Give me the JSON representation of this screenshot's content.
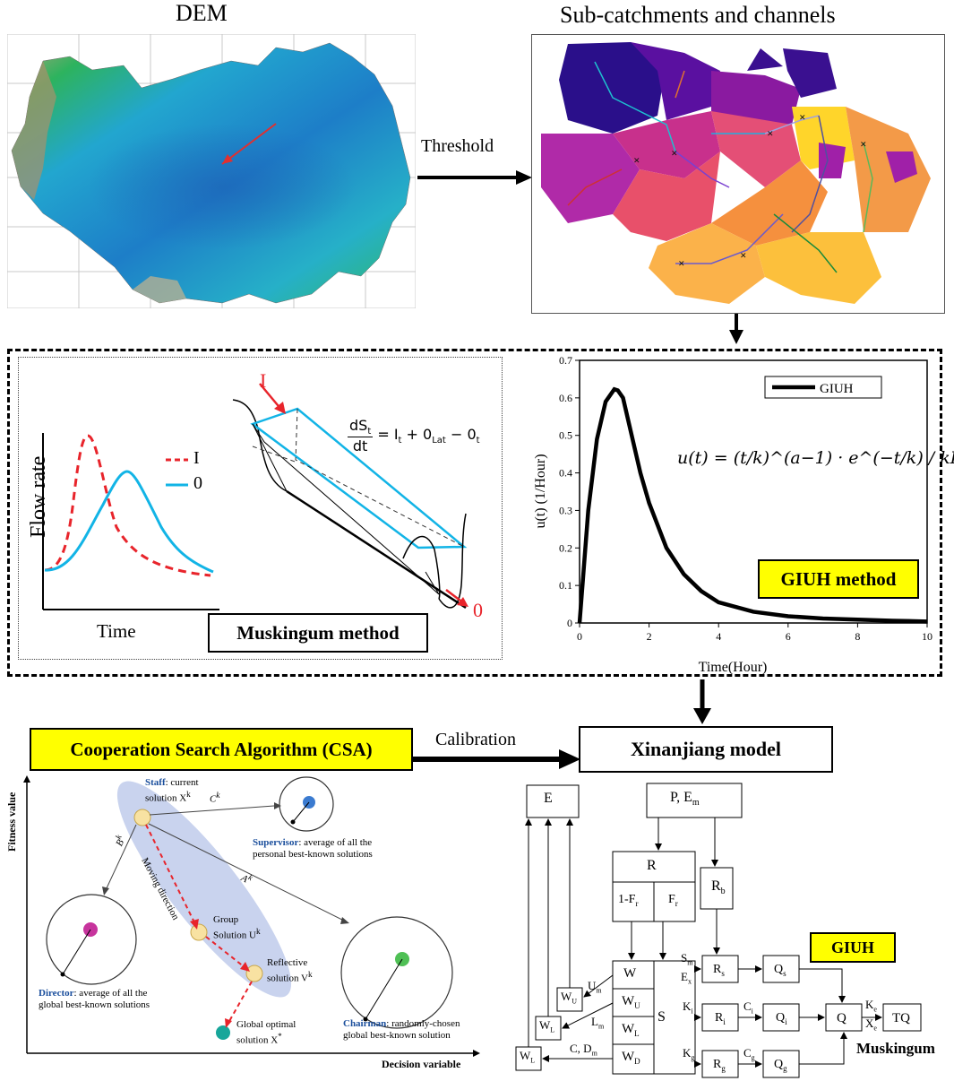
{
  "top": {
    "dem_title": "DEM",
    "sub_title": "Sub-catchments and channels",
    "threshold": "Threshold"
  },
  "muskingum": {
    "label": "Muskingum method",
    "flow_rate": "Flow rate",
    "time": "Time",
    "legend_i": "I",
    "legend_o": "0",
    "arrow_i": "I",
    "arrow_o": "0",
    "eq_num": "dS",
    "eq_num_sub": "t",
    "eq_den": "dt",
    "eq_rhs": "= I",
    "eq_rhs_parts": [
      "t",
      " + 0",
      "Lat",
      " − 0",
      "t"
    ]
  },
  "giuh_chart": {
    "method_label": "GIUH method",
    "formula": "u(t) = (t/k)^(a−1) · e^(−t/k) / kΓ(a)"
  },
  "chart_data": {
    "type": "line",
    "xlabel": "Time(Hour)",
    "ylabel": "u(t) (1/Hour)",
    "xlim": [
      0,
      10
    ],
    "ylim": [
      0,
      0.7
    ],
    "xticks": [
      0,
      2,
      4,
      6,
      8,
      10
    ],
    "yticks": [
      0,
      0.1,
      0.2,
      0.3,
      0.4,
      0.5,
      0.6,
      0.7
    ],
    "legend": "top-right",
    "series": [
      {
        "name": "GIUH",
        "x": [
          0,
          0.1,
          0.25,
          0.5,
          0.75,
          1.0,
          1.1,
          1.25,
          1.5,
          1.75,
          2.0,
          2.5,
          3.0,
          3.5,
          4.0,
          5.0,
          6.0,
          7.0,
          8.0,
          9.0,
          10.0
        ],
        "y": [
          0,
          0.12,
          0.3,
          0.49,
          0.59,
          0.623,
          0.62,
          0.6,
          0.5,
          0.4,
          0.32,
          0.2,
          0.13,
          0.085,
          0.055,
          0.03,
          0.018,
          0.012,
          0.009,
          0.006,
          0.004
        ]
      }
    ]
  },
  "csa": {
    "title": "Cooperation Search Algorithm (CSA)",
    "calibration": "Calibration",
    "fitness": "Fitness value",
    "decision": "Decision variable",
    "staff_bold": "Staff",
    "staff_rest": ": current",
    "staff_line2": "solution X",
    "staff_sup": "k",
    "supervisor_bold": "Supervisor",
    "supervisor_rest": ": average of all the",
    "supervisor_line2": "personal best-known solutions",
    "director_bold": "Director",
    "director_rest": ": average of all the",
    "director_line2": "global best-known solutions",
    "chairman_bold": "Chairman",
    "chairman_rest": ": randomly-chosen",
    "chairman_line2": "global best-known solution",
    "group1": "Group",
    "group2": "Solution U",
    "reflect1": "Reflective",
    "reflect2": "solution V",
    "global1": "Global optimal",
    "global2": "solution X",
    "global_sup": "*",
    "moving": "Moving direction",
    "label_c": "C",
    "label_b": "B",
    "label_a": "A",
    "k": "k"
  },
  "xaj": {
    "title": "Xinanjiang model",
    "giuh": "GIUH",
    "muskingum": "Muskingum",
    "E": "E",
    "PEm": "P, E",
    "PEm_sub": "m",
    "R": "R",
    "oneFr": "1-F",
    "Fr": "F",
    "r": "r",
    "Rb": "R",
    "b": "b",
    "W": "W",
    "WU": "W",
    "WL": "W",
    "WD": "W",
    "U": "U",
    "L": "L",
    "D": "D",
    "S": "S",
    "Sm": "S",
    "Ex": "E",
    "x": "x",
    "m": "m",
    "Ki": "K",
    "i": "i",
    "Kg": "K",
    "g": "g",
    "Rs": "R",
    "s": "s",
    "Ri": "R",
    "Rg": "R",
    "Ci": "C",
    "Cg": "C",
    "Qs": "Q",
    "Qi": "Q",
    "Qg": "Q",
    "Q": "Q",
    "Ke": "K",
    "Xe": "X",
    "e": "e",
    "TQ": "TQ",
    "Um": "U",
    "Lm": "L",
    "CDm": "C, D"
  },
  "colors": {
    "yellow": "#ffff00",
    "red_dash": "#e8242b",
    "cyan": "#12b4e6",
    "ellipse": "#c9d3ee"
  }
}
